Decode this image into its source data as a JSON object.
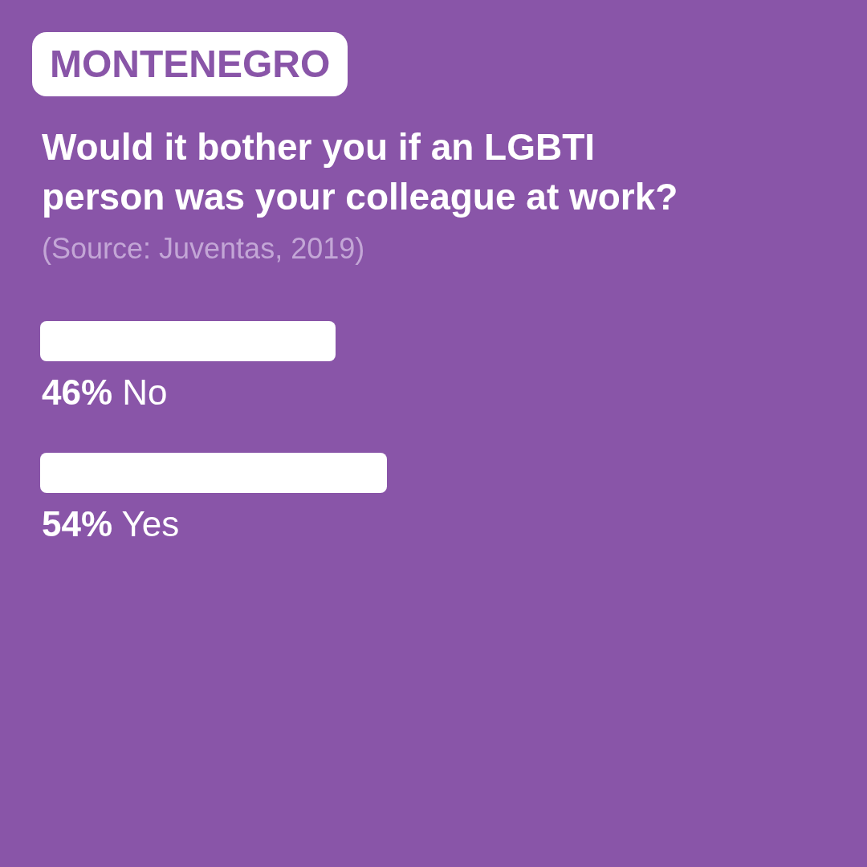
{
  "chart_data": {
    "type": "bar",
    "orientation": "horizontal",
    "subtitle": "MONTENEGRO",
    "title": "Would it bother you if an LGBTI person was your colleague at work?",
    "annotations": [
      "(Source: Juventas, 2019)"
    ],
    "categories": [
      "No",
      "Yes"
    ],
    "values": [
      46,
      54
    ],
    "value_labels": [
      "46%",
      "54%"
    ],
    "color": "#ffffff",
    "tick_labels": false
  }
}
